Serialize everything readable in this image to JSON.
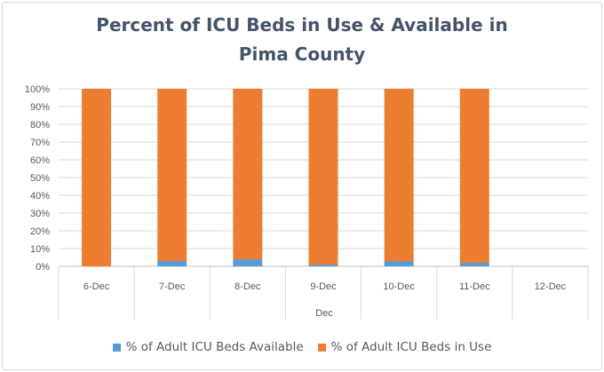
{
  "chart_data": {
    "type": "bar",
    "stacked": true,
    "title_lines": [
      "Percent of ICU Beds in Use & Available in",
      "Pima County"
    ],
    "xlabel": "Dec",
    "ylabel": "",
    "categories": [
      "6-Dec",
      "7-Dec",
      "8-Dec",
      "9-Dec",
      "10-Dec",
      "11-Dec",
      "12-Dec"
    ],
    "yticks": [
      "0%",
      "10%",
      "20%",
      "30%",
      "40%",
      "50%",
      "60%",
      "70%",
      "80%",
      "90%",
      "100%"
    ],
    "ylim": [
      0,
      100
    ],
    "grid": true,
    "legend_position": "bottom",
    "series": [
      {
        "name": "% of Adult ICU Beds Available",
        "color": "#5b9bd5",
        "values": [
          0,
          3,
          4,
          1,
          3,
          2,
          null
        ]
      },
      {
        "name": "% of Adult ICU Beds in Use",
        "color": "#ed7d31",
        "values": [
          100,
          97,
          96,
          99,
          97,
          98,
          null
        ]
      }
    ]
  }
}
